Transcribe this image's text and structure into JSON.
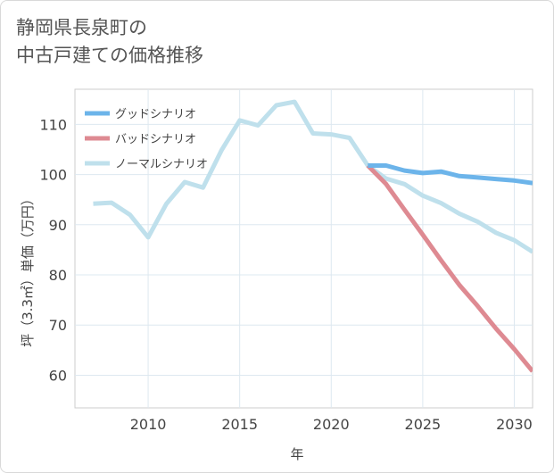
{
  "title_lines": [
    "静岡県長泉町の",
    "中古戸建ての価格推移"
  ],
  "chart_data": {
    "type": "line",
    "xlabel": "年",
    "ylabel": "坪（3.3㎡）単価（万円）",
    "xlim": [
      2006,
      2031
    ],
    "ylim": [
      53.5,
      117
    ],
    "xticks": [
      2010,
      2015,
      2020,
      2025,
      2030
    ],
    "yticks": [
      60,
      70,
      80,
      90,
      100,
      110
    ],
    "grid": true,
    "legend_position": "top-left",
    "series": [
      {
        "name": "グッドシナリオ",
        "color": "#6cb4ea",
        "x": [
          2022,
          2023,
          2024,
          2025,
          2026,
          2027,
          2028,
          2029,
          2030,
          2031
        ],
        "values": [
          101.8,
          101.8,
          100.8,
          100.3,
          100.6,
          99.7,
          99.4,
          99.1,
          98.8,
          98.3
        ]
      },
      {
        "name": "バッドシナリオ",
        "color": "#de8a92",
        "x": [
          2022,
          2023,
          2024,
          2025,
          2026,
          2027,
          2028,
          2029,
          2030,
          2031
        ],
        "values": [
          101.8,
          98.1,
          93.0,
          88.0,
          82.9,
          78.0,
          73.8,
          69.3,
          65.2,
          60.8
        ]
      },
      {
        "name": "ノーマルシナリオ",
        "color": "#bfe0ec",
        "x": [
          2007,
          2008,
          2009,
          2010,
          2011,
          2012,
          2013,
          2014,
          2015,
          2016,
          2017,
          2018,
          2019,
          2020,
          2021,
          2022,
          2023,
          2024,
          2025,
          2026,
          2027,
          2028,
          2029,
          2030,
          2031
        ],
        "values": [
          94.2,
          94.4,
          92.0,
          87.5,
          94.2,
          98.5,
          97.4,
          104.8,
          110.8,
          109.8,
          113.8,
          114.5,
          108.2,
          108.0,
          107.3,
          101.8,
          99.2,
          98.1,
          95.8,
          94.3,
          92.2,
          90.6,
          88.4,
          86.9,
          84.6
        ]
      }
    ]
  }
}
